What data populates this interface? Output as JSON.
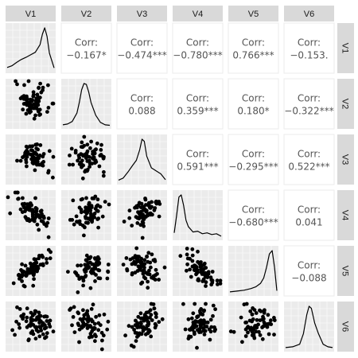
{
  "chart_data": {
    "type": "scatter",
    "kind": "pairs-matrix",
    "variables": [
      "V1",
      "V2",
      "V3",
      "V4",
      "V5",
      "V6"
    ],
    "grid": true,
    "diagonal": "density",
    "lower": "scatter",
    "upper": "correlation",
    "corr_label": "Corr:",
    "correlations": [
      {
        "row": "V1",
        "col": "V2",
        "value": "−0.167",
        "stars": "*"
      },
      {
        "row": "V1",
        "col": "V3",
        "value": "−0.474",
        "stars": "***"
      },
      {
        "row": "V1",
        "col": "V4",
        "value": "−0.780",
        "stars": "***"
      },
      {
        "row": "V1",
        "col": "V5",
        "value": "0.766",
        "stars": "***"
      },
      {
        "row": "V1",
        "col": "V6",
        "value": "−0.153.",
        "stars": ""
      },
      {
        "row": "V2",
        "col": "V3",
        "value": "0.088",
        "stars": ""
      },
      {
        "row": "V2",
        "col": "V4",
        "value": "0.359",
        "stars": "***"
      },
      {
        "row": "V2",
        "col": "V5",
        "value": "0.180",
        "stars": "*"
      },
      {
        "row": "V2",
        "col": "V6",
        "value": "−0.322",
        "stars": "***"
      },
      {
        "row": "V3",
        "col": "V4",
        "value": "0.591",
        "stars": "***"
      },
      {
        "row": "V3",
        "col": "V5",
        "value": "−0.295",
        "stars": "***"
      },
      {
        "row": "V3",
        "col": "V6",
        "value": "0.522",
        "stars": "***"
      },
      {
        "row": "V4",
        "col": "V5",
        "value": "−0.680",
        "stars": "***"
      },
      {
        "row": "V4",
        "col": "V6",
        "value": "0.041",
        "stars": ""
      },
      {
        "row": "V5",
        "col": "V6",
        "value": "−0.088",
        "stars": ""
      }
    ],
    "densities": [
      {
        "variable": "V1",
        "shape": "left-skewed",
        "x": [
          0,
          0.1,
          0.2,
          0.3,
          0.4,
          0.5,
          0.6,
          0.7,
          0.75,
          0.8,
          0.85,
          0.9,
          1
        ],
        "y": [
          0.06,
          0.1,
          0.18,
          0.25,
          0.3,
          0.36,
          0.42,
          0.6,
          0.85,
          1.0,
          0.8,
          0.4,
          0.05
        ]
      },
      {
        "variable": "V2",
        "shape": "symmetric",
        "x": [
          0,
          0.1,
          0.2,
          0.3,
          0.35,
          0.4,
          0.45,
          0.5,
          0.55,
          0.6,
          0.7,
          0.8,
          0.9,
          1
        ],
        "y": [
          0.02,
          0.04,
          0.1,
          0.3,
          0.55,
          0.85,
          1.0,
          0.98,
          0.8,
          0.55,
          0.25,
          0.08,
          0.02,
          0.01
        ]
      },
      {
        "variable": "V3",
        "shape": "right-tail",
        "x": [
          0,
          0.1,
          0.2,
          0.3,
          0.38,
          0.45,
          0.5,
          0.55,
          0.6,
          0.7,
          0.8,
          0.9,
          1
        ],
        "y": [
          0.03,
          0.08,
          0.22,
          0.38,
          0.5,
          0.75,
          1.0,
          0.95,
          0.6,
          0.32,
          0.25,
          0.18,
          0.04
        ]
      },
      {
        "variable": "V4",
        "shape": "right-skewed",
        "x": [
          0,
          0.05,
          0.1,
          0.15,
          0.2,
          0.25,
          0.3,
          0.4,
          0.5,
          0.6,
          0.7,
          0.8,
          0.9,
          1
        ],
        "y": [
          0.1,
          0.5,
          0.95,
          1.0,
          0.75,
          0.4,
          0.25,
          0.12,
          0.14,
          0.08,
          0.1,
          0.06,
          0.08,
          0.02
        ]
      },
      {
        "variable": "V5",
        "shape": "left-skewed",
        "x": [
          0,
          0.15,
          0.3,
          0.45,
          0.55,
          0.65,
          0.72,
          0.78,
          0.84,
          0.9,
          0.95,
          1
        ],
        "y": [
          0.02,
          0.04,
          0.06,
          0.1,
          0.14,
          0.22,
          0.35,
          0.6,
          0.92,
          1.0,
          0.6,
          0.05
        ]
      },
      {
        "variable": "V6",
        "shape": "symmetric",
        "x": [
          0,
          0.15,
          0.3,
          0.38,
          0.45,
          0.5,
          0.55,
          0.62,
          0.7,
          0.8,
          0.9,
          1
        ],
        "y": [
          0.02,
          0.04,
          0.1,
          0.35,
          0.8,
          1.0,
          0.95,
          0.6,
          0.35,
          0.1,
          0.04,
          0.02
        ]
      }
    ],
    "colors": {
      "panel_background": "#ebebeb",
      "gridline": "#ffffff",
      "strip_background": "#d9d9d9",
      "point": "#000000",
      "line": "#000000",
      "corr_text": "#555555"
    }
  }
}
